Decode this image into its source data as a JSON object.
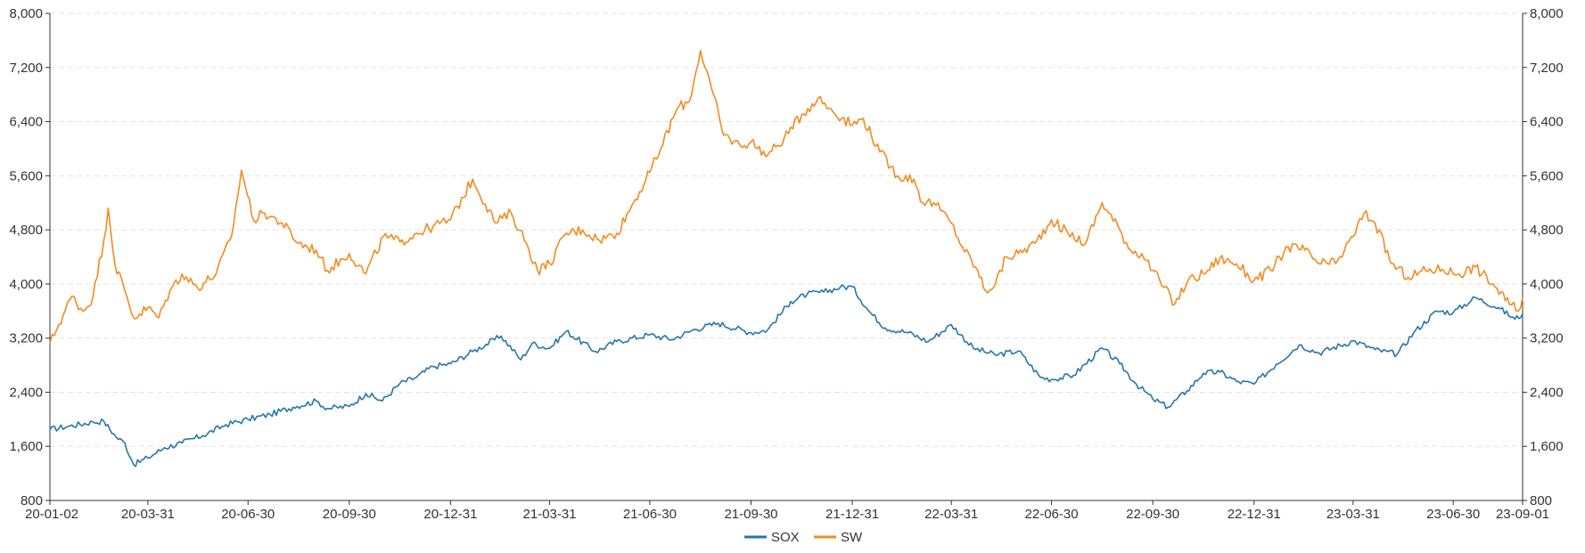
{
  "chart_data": {
    "type": "line",
    "y_left": {
      "min": 800,
      "max": 8000,
      "ticks": [
        "8,000",
        "7,200",
        "6,400",
        "5,600",
        "4,800",
        "4,000",
        "3,200",
        "2,400",
        "1,600",
        "800"
      ]
    },
    "y_right": {
      "min": 800,
      "max": 8000,
      "ticks": [
        "8,000",
        "7,200",
        "6,400",
        "5,600",
        "4,800",
        "4,000",
        "3,200",
        "2,400",
        "1,600",
        "800"
      ]
    },
    "x_ticks": [
      "20-01-02",
      "20-03-31",
      "20-06-30",
      "20-09-30",
      "20-12-31",
      "21-03-31",
      "21-06-30",
      "21-09-30",
      "21-12-31",
      "22-03-31",
      "22-06-30",
      "22-09-30",
      "22-12-31",
      "23-03-31",
      "23-06-30",
      "23-09-01"
    ],
    "grid": true,
    "legend_position": "bottom-center",
    "series": [
      {
        "name": "SOX",
        "color": "#2677a8",
        "points": [
          [
            "20-01-02",
            1850
          ],
          [
            "20-01-20",
            1900
          ],
          [
            "20-02-10",
            1960
          ],
          [
            "20-02-20",
            1970
          ],
          [
            "20-03-02",
            1740
          ],
          [
            "20-03-10",
            1650
          ],
          [
            "20-03-18",
            1330
          ],
          [
            "20-03-31",
            1430
          ],
          [
            "20-04-15",
            1580
          ],
          [
            "20-05-01",
            1650
          ],
          [
            "20-05-20",
            1760
          ],
          [
            "20-06-10",
            1920
          ],
          [
            "20-06-30",
            2000
          ],
          [
            "20-07-20",
            2070
          ],
          [
            "20-08-10",
            2180
          ],
          [
            "20-08-31",
            2270
          ],
          [
            "20-09-10",
            2160
          ],
          [
            "20-09-30",
            2190
          ],
          [
            "20-10-15",
            2380
          ],
          [
            "20-10-30",
            2270
          ],
          [
            "20-11-15",
            2530
          ],
          [
            "20-11-30",
            2620
          ],
          [
            "20-12-15",
            2780
          ],
          [
            "20-12-31",
            2820
          ],
          [
            "21-01-20",
            3000
          ],
          [
            "21-02-15",
            3230
          ],
          [
            "21-03-05",
            2880
          ],
          [
            "21-03-15",
            3120
          ],
          [
            "21-03-31",
            3050
          ],
          [
            "21-04-15",
            3300
          ],
          [
            "21-05-12",
            3000
          ],
          [
            "21-05-31",
            3150
          ],
          [
            "21-06-30",
            3250
          ],
          [
            "21-07-20",
            3180
          ],
          [
            "21-08-10",
            3330
          ],
          [
            "21-08-31",
            3420
          ],
          [
            "21-09-30",
            3280
          ],
          [
            "21-10-15",
            3320
          ],
          [
            "21-11-05",
            3740
          ],
          [
            "21-11-20",
            3850
          ],
          [
            "21-12-05",
            3880
          ],
          [
            "21-12-20",
            3950
          ],
          [
            "21-12-31",
            3960
          ],
          [
            "22-01-15",
            3600
          ],
          [
            "22-01-30",
            3350
          ],
          [
            "22-02-20",
            3280
          ],
          [
            "22-03-10",
            3150
          ],
          [
            "22-03-31",
            3400
          ],
          [
            "22-04-20",
            3050
          ],
          [
            "22-05-10",
            2950
          ],
          [
            "22-05-31",
            3010
          ],
          [
            "22-06-20",
            2620
          ],
          [
            "22-06-30",
            2590
          ],
          [
            "22-07-20",
            2650
          ],
          [
            "22-08-15",
            3050
          ],
          [
            "22-08-31",
            2820
          ],
          [
            "22-09-15",
            2520
          ],
          [
            "22-09-30",
            2300
          ],
          [
            "22-10-14",
            2180
          ],
          [
            "22-10-31",
            2420
          ],
          [
            "22-11-15",
            2680
          ],
          [
            "22-11-30",
            2700
          ],
          [
            "22-12-15",
            2560
          ],
          [
            "22-12-31",
            2520
          ],
          [
            "23-01-20",
            2810
          ],
          [
            "23-02-10",
            3100
          ],
          [
            "23-02-28",
            2980
          ],
          [
            "23-03-31",
            3160
          ],
          [
            "23-04-20",
            3030
          ],
          [
            "23-05-10",
            2960
          ],
          [
            "23-05-25",
            3280
          ],
          [
            "23-06-15",
            3600
          ],
          [
            "23-06-30",
            3580
          ],
          [
            "23-07-20",
            3800
          ],
          [
            "23-08-10",
            3650
          ],
          [
            "23-08-25",
            3480
          ],
          [
            "23-09-01",
            3560
          ]
        ]
      },
      {
        "name": "SW",
        "color": "#f28b1f",
        "points": [
          [
            "20-01-02",
            3120
          ],
          [
            "20-01-10",
            3400
          ],
          [
            "20-01-22",
            3820
          ],
          [
            "20-02-01",
            3600
          ],
          [
            "20-02-10",
            3800
          ],
          [
            "20-02-20",
            4650
          ],
          [
            "20-02-24",
            5120
          ],
          [
            "20-03-01",
            4300
          ],
          [
            "20-03-10",
            3900
          ],
          [
            "20-03-18",
            3500
          ],
          [
            "20-03-31",
            3650
          ],
          [
            "20-04-10",
            3500
          ],
          [
            "20-04-20",
            3900
          ],
          [
            "20-05-01",
            4150
          ],
          [
            "20-05-15",
            3950
          ],
          [
            "20-06-01",
            4150
          ],
          [
            "20-06-15",
            4700
          ],
          [
            "20-06-24",
            5680
          ],
          [
            "20-07-05",
            4950
          ],
          [
            "20-07-15",
            5050
          ],
          [
            "20-07-31",
            4900
          ],
          [
            "20-08-15",
            4600
          ],
          [
            "20-08-31",
            4500
          ],
          [
            "20-09-10",
            4200
          ],
          [
            "20-09-30",
            4450
          ],
          [
            "20-10-15",
            4150
          ],
          [
            "20-10-31",
            4700
          ],
          [
            "20-11-15",
            4620
          ],
          [
            "20-11-30",
            4750
          ],
          [
            "20-12-15",
            4850
          ],
          [
            "20-12-31",
            4950
          ],
          [
            "21-01-20",
            5550
          ],
          [
            "21-02-10",
            4900
          ],
          [
            "21-02-24",
            5050
          ],
          [
            "21-03-10",
            4600
          ],
          [
            "21-03-20",
            4200
          ],
          [
            "21-03-31",
            4300
          ],
          [
            "21-04-15",
            4750
          ],
          [
            "21-04-30",
            4800
          ],
          [
            "21-05-15",
            4650
          ],
          [
            "21-05-31",
            4750
          ],
          [
            "21-06-15",
            5200
          ],
          [
            "21-06-30",
            5650
          ],
          [
            "21-07-10",
            6000
          ],
          [
            "21-07-25",
            6600
          ],
          [
            "21-08-05",
            6700
          ],
          [
            "21-08-15",
            7450
          ],
          [
            "21-08-25",
            6900
          ],
          [
            "21-09-05",
            6200
          ],
          [
            "21-09-20",
            6050
          ],
          [
            "21-09-30",
            6100
          ],
          [
            "21-10-15",
            5900
          ],
          [
            "21-10-30",
            6150
          ],
          [
            "21-11-15",
            6500
          ],
          [
            "21-11-30",
            6750
          ],
          [
            "21-12-10",
            6600
          ],
          [
            "21-12-31",
            6350
          ],
          [
            "22-01-10",
            6450
          ],
          [
            "22-01-25",
            5950
          ],
          [
            "22-02-10",
            5600
          ],
          [
            "22-02-25",
            5550
          ],
          [
            "22-03-05",
            5200
          ],
          [
            "22-03-15",
            5200
          ],
          [
            "22-03-31",
            4900
          ],
          [
            "22-04-10",
            4550
          ],
          [
            "22-04-22",
            4250
          ],
          [
            "22-05-01",
            3900
          ],
          [
            "22-05-10",
            4000
          ],
          [
            "22-05-20",
            4400
          ],
          [
            "22-05-31",
            4450
          ],
          [
            "22-06-15",
            4600
          ],
          [
            "22-06-30",
            4950
          ],
          [
            "22-07-15",
            4750
          ],
          [
            "22-07-31",
            4600
          ],
          [
            "22-08-15",
            5200
          ],
          [
            "22-08-31",
            4800
          ],
          [
            "22-09-10",
            4500
          ],
          [
            "22-09-20",
            4450
          ],
          [
            "22-09-30",
            4200
          ],
          [
            "22-10-10",
            3950
          ],
          [
            "22-10-20",
            3700
          ],
          [
            "22-11-01",
            4050
          ],
          [
            "22-11-15",
            4150
          ],
          [
            "22-11-30",
            4380
          ],
          [
            "22-12-15",
            4300
          ],
          [
            "22-12-31",
            4050
          ],
          [
            "23-01-15",
            4200
          ],
          [
            "23-01-31",
            4550
          ],
          [
            "23-02-15",
            4500
          ],
          [
            "23-02-28",
            4300
          ],
          [
            "23-03-15",
            4300
          ],
          [
            "23-03-31",
            4700
          ],
          [
            "23-04-10",
            5050
          ],
          [
            "23-04-20",
            4900
          ],
          [
            "23-05-05",
            4300
          ],
          [
            "23-05-20",
            4100
          ],
          [
            "23-06-05",
            4200
          ],
          [
            "23-06-20",
            4220
          ],
          [
            "23-07-05",
            4150
          ],
          [
            "23-07-20",
            4250
          ],
          [
            "23-08-05",
            4000
          ],
          [
            "23-08-20",
            3700
          ],
          [
            "23-08-28",
            3600
          ],
          [
            "23-09-01",
            3800
          ]
        ]
      }
    ]
  }
}
